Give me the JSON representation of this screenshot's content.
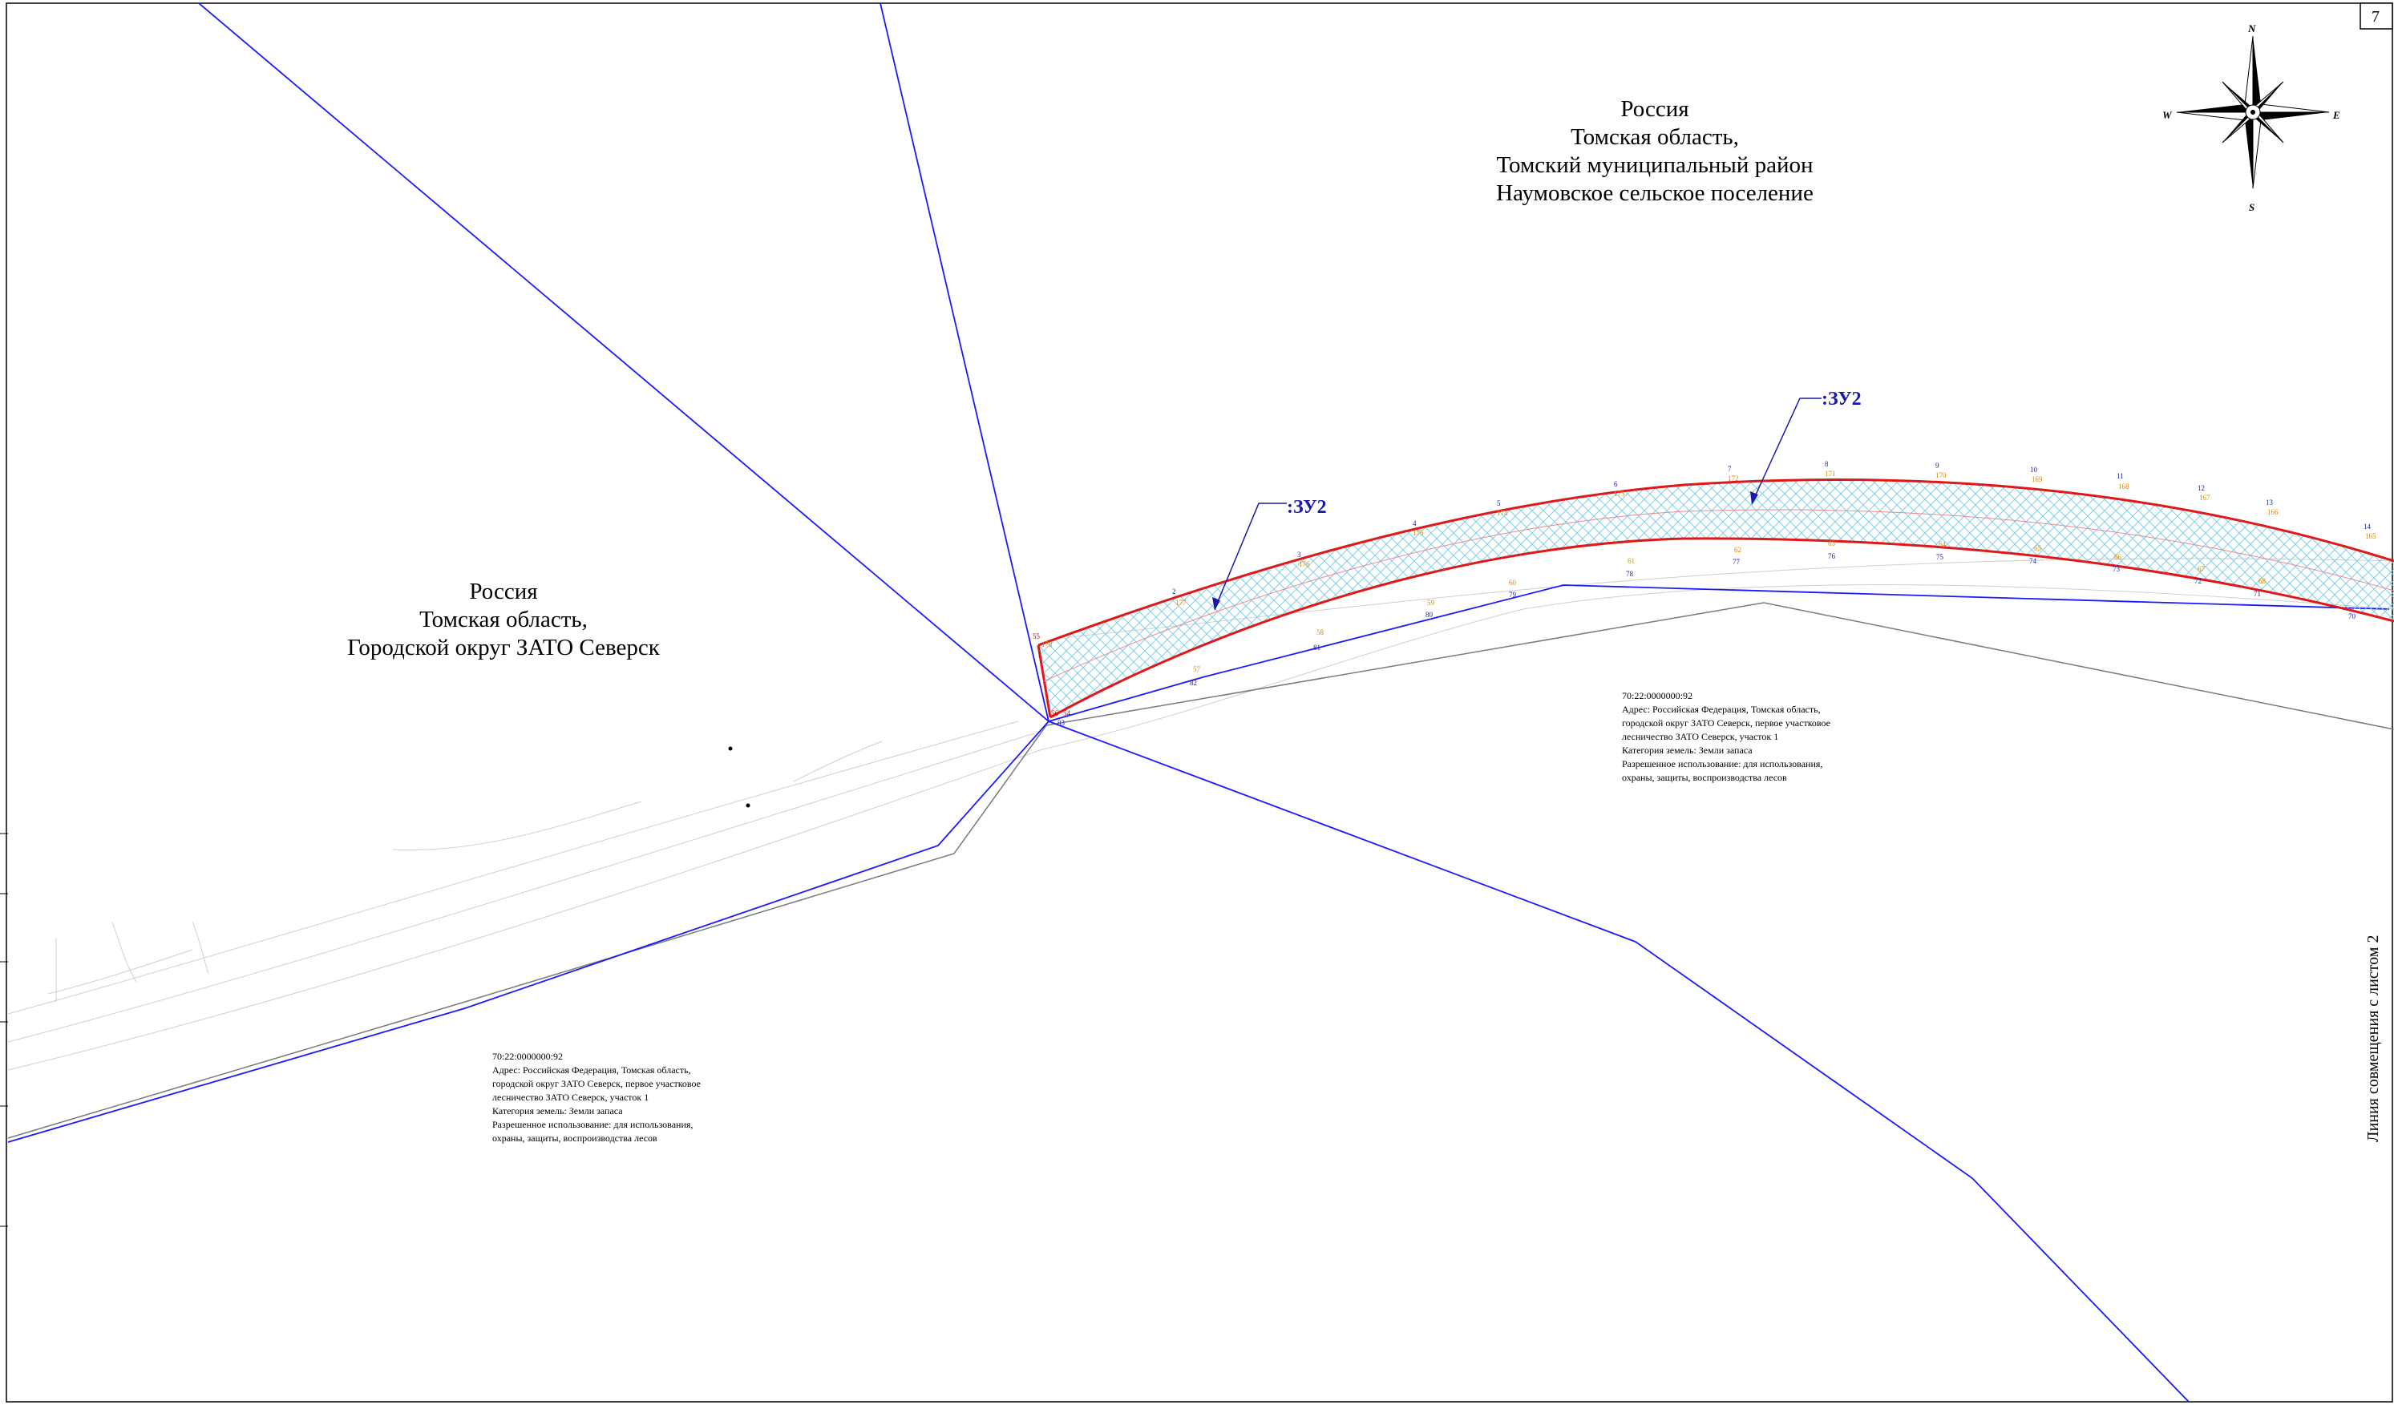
{
  "sheet_number": "7",
  "compass": {
    "north": "N",
    "south": "S",
    "east": "E",
    "west": "W"
  },
  "regions": {
    "north": [
      "Россия",
      "Томская область,",
      "Томский муниципальный район",
      "Наумовское сельское поселение"
    ],
    "west": [
      "Россия",
      "Томская область,",
      "Городской округ ЗАТО Северск"
    ]
  },
  "parcel_labels": [
    ":ЗУ2",
    ":ЗУ2"
  ],
  "info_block": [
    "70:22:0000000:92",
    "Адрес: Российская Федерация, Томская область,",
    "городской округ ЗАТО Северск, первое участковое",
    "лесничество ЗАТО Северск, участок 1",
    "Категория земель: Земли запаса",
    "Разрешенное использование: для использования,",
    "охраны, защиты, воспроизводства лесов"
  ],
  "match_line_label": "Линия совмещения с листом 2",
  "point_labels": {
    "upper_blue": [
      "2",
      "3",
      "4",
      "5",
      "6",
      "7",
      "8",
      "9",
      "10",
      "11",
      "12",
      "13",
      "14"
    ],
    "upper_orange": [
      "177",
      "176",
      "175",
      "174",
      "173",
      "172",
      "171",
      "170",
      "169",
      "168",
      "167",
      "166",
      "165"
    ],
    "lower_orange": [
      "57",
      "58",
      "59",
      "60",
      "61",
      "62",
      "63",
      "64",
      "65",
      "66",
      "67",
      "68"
    ],
    "lower_blue": [
      "82",
      "81",
      "80",
      "79",
      "78",
      "77",
      "76",
      "75",
      "74",
      "73",
      "72",
      "71",
      "70"
    ],
    "corner": [
      "55",
      "178",
      "1",
      "56",
      "54",
      "83"
    ]
  },
  "colors": {
    "parcel_boundary": "#e01818",
    "cadastral_boundary": "#1a1aff",
    "road_line": "#7a7a7a",
    "hatch": "#7fd0ea",
    "label_blue": "#1a1aa8",
    "label_orange": "#d68a00"
  }
}
